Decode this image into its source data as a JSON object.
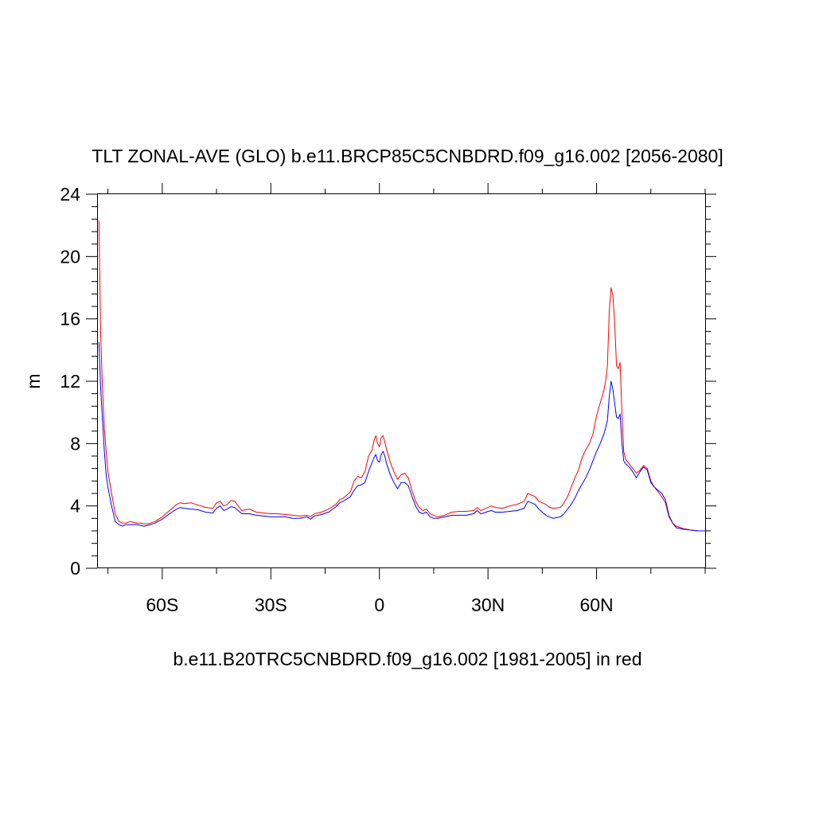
{
  "chart_data": {
    "type": "line",
    "title": "TLT ZONAL-AVE (GLO) b.e11.BRCP85C5CNBDRD.f09_g16.002 [2056-2080]",
    "subtitle": "b.e11.B20TRC5CNBDRD.f09_g16.002 [1981-2005] in red",
    "xlabel": "",
    "ylabel": "m",
    "xlim": [
      -78,
      90
    ],
    "ylim": [
      0,
      24
    ],
    "x_ticks": [
      {
        "value": -60,
        "label": "60S"
      },
      {
        "value": -30,
        "label": "30S"
      },
      {
        "value": 0,
        "label": "0"
      },
      {
        "value": 30,
        "label": "30N"
      },
      {
        "value": 60,
        "label": "60N"
      }
    ],
    "y_ticks": [
      0,
      4,
      8,
      12,
      16,
      20,
      24
    ],
    "grid": false,
    "series": [
      {
        "color": "#ff0000",
        "points": [
          [
            -77.5,
            22.3
          ],
          [
            -77,
            15.0
          ],
          [
            -76.5,
            11.5
          ],
          [
            -76,
            9.0
          ],
          [
            -75.5,
            7.5
          ],
          [
            -75,
            6.2
          ],
          [
            -74,
            4.8
          ],
          [
            -73,
            3.5
          ],
          [
            -72,
            3.0
          ],
          [
            -71,
            2.9
          ],
          [
            -70,
            2.9
          ],
          [
            -69,
            3.0
          ],
          [
            -68,
            2.95
          ],
          [
            -67,
            2.9
          ],
          [
            -66,
            2.9
          ],
          [
            -65,
            2.85
          ],
          [
            -64,
            2.85
          ],
          [
            -62,
            3.0
          ],
          [
            -60,
            3.3
          ],
          [
            -58,
            3.7
          ],
          [
            -56,
            4.1
          ],
          [
            -55,
            4.2
          ],
          [
            -54,
            4.15
          ],
          [
            -52,
            4.2
          ],
          [
            -50,
            4.05
          ],
          [
            -48,
            3.9
          ],
          [
            -46,
            3.85
          ],
          [
            -45,
            4.2
          ],
          [
            -44,
            4.3
          ],
          [
            -43,
            4.0
          ],
          [
            -42,
            4.1
          ],
          [
            -41,
            4.35
          ],
          [
            -40,
            4.3
          ],
          [
            -38,
            3.7
          ],
          [
            -36,
            3.8
          ],
          [
            -34,
            3.6
          ],
          [
            -32,
            3.55
          ],
          [
            -30,
            3.5
          ],
          [
            -28,
            3.5
          ],
          [
            -26,
            3.45
          ],
          [
            -24,
            3.4
          ],
          [
            -22,
            3.35
          ],
          [
            -20,
            3.4
          ],
          [
            -19,
            3.3
          ],
          [
            -18,
            3.5
          ],
          [
            -16,
            3.6
          ],
          [
            -14,
            3.8
          ],
          [
            -12,
            4.1
          ],
          [
            -11,
            4.4
          ],
          [
            -10,
            4.5
          ],
          [
            -9,
            4.7
          ],
          [
            -8,
            4.9
          ],
          [
            -7,
            5.6
          ],
          [
            -6,
            5.9
          ],
          [
            -5,
            5.8
          ],
          [
            -4,
            6.2
          ],
          [
            -3,
            7.2
          ],
          [
            -2,
            7.6
          ],
          [
            -1.5,
            8.2
          ],
          [
            -1,
            8.5
          ],
          [
            -0.5,
            8.0
          ],
          [
            0,
            7.8
          ],
          [
            0.5,
            8.4
          ],
          [
            1,
            8.5
          ],
          [
            1.5,
            8.1
          ],
          [
            2,
            7.6
          ],
          [
            3,
            6.8
          ],
          [
            4,
            6.2
          ],
          [
            5,
            5.7
          ],
          [
            6,
            6.0
          ],
          [
            7,
            6.1
          ],
          [
            8,
            5.8
          ],
          [
            9,
            5.0
          ],
          [
            10,
            4.3
          ],
          [
            11,
            3.9
          ],
          [
            12,
            3.7
          ],
          [
            13,
            3.8
          ],
          [
            14,
            3.5
          ],
          [
            15,
            3.4
          ],
          [
            16,
            3.3
          ],
          [
            18,
            3.4
          ],
          [
            20,
            3.6
          ],
          [
            22,
            3.65
          ],
          [
            24,
            3.65
          ],
          [
            26,
            3.7
          ],
          [
            27,
            3.9
          ],
          [
            28,
            3.7
          ],
          [
            29,
            3.8
          ],
          [
            30,
            3.9
          ],
          [
            31,
            4.0
          ],
          [
            32,
            3.9
          ],
          [
            34,
            3.85
          ],
          [
            36,
            4.0
          ],
          [
            38,
            4.1
          ],
          [
            40,
            4.3
          ],
          [
            41,
            4.8
          ],
          [
            42,
            4.7
          ],
          [
            43,
            4.6
          ],
          [
            44,
            4.3
          ],
          [
            45,
            4.2
          ],
          [
            46,
            4.1
          ],
          [
            47,
            3.9
          ],
          [
            48,
            3.85
          ],
          [
            50,
            3.9
          ],
          [
            51,
            4.2
          ],
          [
            52,
            4.6
          ],
          [
            53,
            5.2
          ],
          [
            54,
            5.8
          ],
          [
            55,
            6.3
          ],
          [
            56,
            7.1
          ],
          [
            57,
            7.6
          ],
          [
            58,
            8.0
          ],
          [
            59,
            8.6
          ],
          [
            60,
            9.8
          ],
          [
            61,
            10.6
          ],
          [
            62,
            11.4
          ],
          [
            62.5,
            12.0
          ],
          [
            63,
            13.0
          ],
          [
            63.5,
            16.5
          ],
          [
            64,
            18.0
          ],
          [
            64.5,
            17.5
          ],
          [
            65,
            15.8
          ],
          [
            65.5,
            13.0
          ],
          [
            66,
            12.8
          ],
          [
            66.5,
            13.2
          ],
          [
            67,
            10.0
          ],
          [
            67.5,
            7.5
          ],
          [
            68,
            7.0
          ],
          [
            69,
            6.7
          ],
          [
            70,
            6.4
          ],
          [
            71,
            6.1
          ],
          [
            72,
            6.3
          ],
          [
            73,
            6.6
          ],
          [
            74,
            6.4
          ],
          [
            75,
            5.6
          ],
          [
            76,
            5.2
          ],
          [
            77,
            4.9
          ],
          [
            78,
            4.6
          ],
          [
            79,
            4.2
          ],
          [
            80,
            3.3
          ],
          [
            81,
            2.9
          ],
          [
            82,
            2.7
          ],
          [
            84,
            2.55
          ],
          [
            86,
            2.45
          ],
          [
            88,
            2.4
          ],
          [
            90,
            2.4
          ]
        ]
      },
      {
        "color": "#0000ff",
        "points": [
          [
            -77.5,
            14.5
          ],
          [
            -77,
            11.5
          ],
          [
            -76.5,
            9.5
          ],
          [
            -76,
            7.5
          ],
          [
            -75.5,
            6.0
          ],
          [
            -75,
            5.2
          ],
          [
            -74,
            4.0
          ],
          [
            -73,
            3.0
          ],
          [
            -72,
            2.8
          ],
          [
            -71,
            2.7
          ],
          [
            -70,
            2.8
          ],
          [
            -69,
            2.8
          ],
          [
            -68,
            2.8
          ],
          [
            -67,
            2.8
          ],
          [
            -66,
            2.75
          ],
          [
            -65,
            2.7
          ],
          [
            -64,
            2.75
          ],
          [
            -62,
            2.9
          ],
          [
            -60,
            3.15
          ],
          [
            -58,
            3.5
          ],
          [
            -56,
            3.8
          ],
          [
            -55,
            3.9
          ],
          [
            -54,
            3.85
          ],
          [
            -52,
            3.8
          ],
          [
            -50,
            3.75
          ],
          [
            -48,
            3.6
          ],
          [
            -46,
            3.55
          ],
          [
            -45,
            3.85
          ],
          [
            -44,
            4.0
          ],
          [
            -43,
            3.7
          ],
          [
            -42,
            3.8
          ],
          [
            -41,
            3.95
          ],
          [
            -40,
            3.9
          ],
          [
            -38,
            3.5
          ],
          [
            -36,
            3.5
          ],
          [
            -34,
            3.4
          ],
          [
            -32,
            3.35
          ],
          [
            -30,
            3.3
          ],
          [
            -28,
            3.3
          ],
          [
            -26,
            3.3
          ],
          [
            -24,
            3.2
          ],
          [
            -22,
            3.2
          ],
          [
            -20,
            3.3
          ],
          [
            -19,
            3.15
          ],
          [
            -18,
            3.35
          ],
          [
            -16,
            3.45
          ],
          [
            -14,
            3.6
          ],
          [
            -12,
            3.95
          ],
          [
            -11,
            4.2
          ],
          [
            -10,
            4.3
          ],
          [
            -9,
            4.45
          ],
          [
            -8,
            4.6
          ],
          [
            -7,
            5.0
          ],
          [
            -6,
            5.3
          ],
          [
            -5,
            5.35
          ],
          [
            -4,
            5.5
          ],
          [
            -3,
            6.2
          ],
          [
            -2,
            6.8
          ],
          [
            -1.5,
            7.1
          ],
          [
            -1,
            7.3
          ],
          [
            -0.5,
            6.9
          ],
          [
            0,
            6.8
          ],
          [
            0.5,
            7.3
          ],
          [
            1,
            7.5
          ],
          [
            1.5,
            7.2
          ],
          [
            2,
            6.7
          ],
          [
            3,
            6.0
          ],
          [
            4,
            5.5
          ],
          [
            5,
            5.1
          ],
          [
            6,
            5.5
          ],
          [
            7,
            5.5
          ],
          [
            8,
            5.3
          ],
          [
            9,
            4.6
          ],
          [
            10,
            4.0
          ],
          [
            11,
            3.6
          ],
          [
            12,
            3.5
          ],
          [
            13,
            3.6
          ],
          [
            14,
            3.3
          ],
          [
            15,
            3.2
          ],
          [
            16,
            3.2
          ],
          [
            18,
            3.3
          ],
          [
            20,
            3.4
          ],
          [
            22,
            3.4
          ],
          [
            24,
            3.4
          ],
          [
            26,
            3.5
          ],
          [
            27,
            3.7
          ],
          [
            28,
            3.5
          ],
          [
            29,
            3.55
          ],
          [
            30,
            3.65
          ],
          [
            31,
            3.7
          ],
          [
            32,
            3.6
          ],
          [
            34,
            3.6
          ],
          [
            36,
            3.65
          ],
          [
            38,
            3.7
          ],
          [
            40,
            3.85
          ],
          [
            41,
            4.3
          ],
          [
            42,
            4.2
          ],
          [
            43,
            4.1
          ],
          [
            44,
            3.8
          ],
          [
            45,
            3.6
          ],
          [
            46,
            3.4
          ],
          [
            47,
            3.3
          ],
          [
            48,
            3.2
          ],
          [
            50,
            3.3
          ],
          [
            51,
            3.5
          ],
          [
            52,
            3.8
          ],
          [
            53,
            4.1
          ],
          [
            54,
            4.5
          ],
          [
            55,
            5.0
          ],
          [
            56,
            5.4
          ],
          [
            57,
            5.8
          ],
          [
            58,
            6.3
          ],
          [
            59,
            6.9
          ],
          [
            60,
            7.5
          ],
          [
            61,
            8.0
          ],
          [
            62,
            8.6
          ],
          [
            62.5,
            9.0
          ],
          [
            63,
            9.5
          ],
          [
            63.5,
            11.0
          ],
          [
            64,
            12.0
          ],
          [
            64.5,
            11.5
          ],
          [
            65,
            10.6
          ],
          [
            65.5,
            9.7
          ],
          [
            66,
            9.6
          ],
          [
            66.5,
            9.9
          ],
          [
            67,
            8.0
          ],
          [
            67.5,
            6.9
          ],
          [
            68,
            6.7
          ],
          [
            69,
            6.5
          ],
          [
            70,
            6.2
          ],
          [
            71,
            5.8
          ],
          [
            72,
            6.2
          ],
          [
            73,
            6.5
          ],
          [
            74,
            6.3
          ],
          [
            75,
            5.5
          ],
          [
            76,
            5.2
          ],
          [
            77,
            5.0
          ],
          [
            78,
            4.8
          ],
          [
            79,
            4.4
          ],
          [
            80,
            3.4
          ],
          [
            81,
            2.9
          ],
          [
            82,
            2.6
          ],
          [
            84,
            2.5
          ],
          [
            86,
            2.45
          ],
          [
            88,
            2.4
          ],
          [
            90,
            2.4
          ]
        ]
      }
    ]
  }
}
